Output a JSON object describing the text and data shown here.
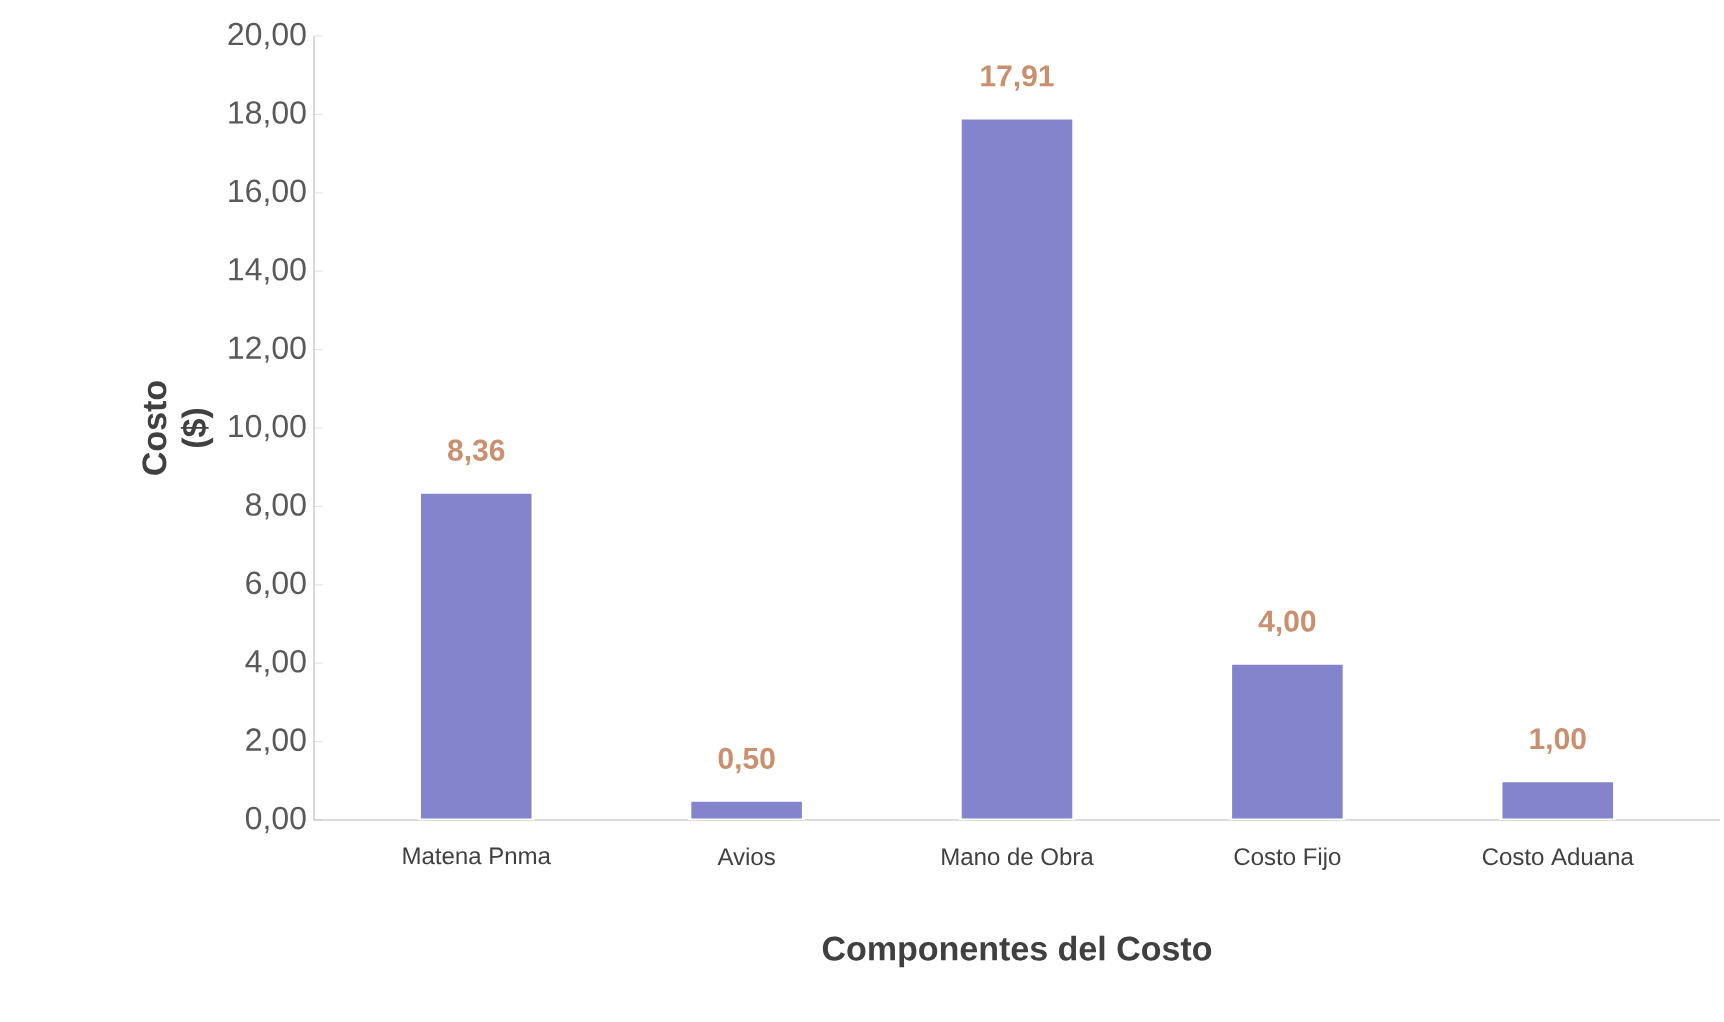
{
  "chart_data": {
    "type": "bar",
    "xlabel": "Componentes del Costo",
    "ylabel": "Costo ($)",
    "categories": [
      "Matena Pnma",
      "Avios",
      "Mano de Obra",
      "Costo Fijo",
      "Costo Aduana"
    ],
    "values": [
      8.36,
      0.5,
      17.91,
      4.0,
      1.0
    ],
    "value_labels": [
      "8,36",
      "0,50",
      "17,91",
      "4,00",
      "1,00"
    ],
    "color": "#8484cc",
    "ylim": [
      0,
      20
    ],
    "yticks": [
      {
        "value": 0,
        "label": "0,00"
      },
      {
        "value": 2,
        "label": "2,00"
      },
      {
        "value": 4,
        "label": "4,00"
      },
      {
        "value": 6,
        "label": "6,00"
      },
      {
        "value": 8,
        "label": "8,00"
      },
      {
        "value": 10,
        "label": "10,00"
      },
      {
        "value": 12,
        "label": "12,00"
      },
      {
        "value": 14,
        "label": "14,00"
      },
      {
        "value": 16,
        "label": "16,00"
      },
      {
        "value": 18,
        "label": "18,00"
      },
      {
        "value": 20,
        "label": "20,00"
      }
    ],
    "grid": false
  }
}
